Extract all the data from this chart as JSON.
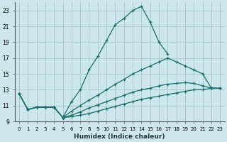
{
  "xlabel": "Humidex (Indice chaleur)",
  "bg_color": "#cce8ec",
  "grid_color": "#aacccc",
  "line_color": "#1a6b6b",
  "xlim": [
    -0.5,
    23.5
  ],
  "ylim": [
    9,
    24
  ],
  "yticks": [
    9,
    11,
    13,
    15,
    17,
    19,
    21,
    23
  ],
  "xticks": [
    0,
    1,
    2,
    3,
    4,
    5,
    6,
    7,
    8,
    9,
    10,
    11,
    12,
    13,
    14,
    15,
    16,
    17,
    18,
    19,
    20,
    21,
    22,
    23
  ],
  "line1_x": [
    0,
    1,
    2,
    3,
    4,
    5,
    6,
    7,
    8,
    9,
    10,
    11,
    12,
    13,
    14,
    15,
    16,
    17
  ],
  "line1_y": [
    12.5,
    10.5,
    10.8,
    10.8,
    10.8,
    9.5,
    11.5,
    13.0,
    15.5,
    17.2,
    19.2,
    21.2,
    22.0,
    23.0,
    23.5,
    21.5,
    19.0,
    17.5
  ],
  "line2_x": [
    0,
    1,
    2,
    3,
    4,
    5,
    6,
    7,
    8,
    9,
    10,
    11,
    12,
    13,
    14,
    15,
    16,
    17,
    18,
    19,
    20,
    21,
    22,
    23
  ],
  "line2_y": [
    12.5,
    10.5,
    10.8,
    10.8,
    10.8,
    9.5,
    10.3,
    11.0,
    11.7,
    12.3,
    13.0,
    13.7,
    14.3,
    15.0,
    15.5,
    16.0,
    16.5,
    17.0,
    16.5,
    16.0,
    15.5,
    15.0,
    13.2,
    13.2
  ],
  "line3_x": [
    0,
    1,
    2,
    3,
    4,
    5,
    6,
    7,
    8,
    9,
    10,
    11,
    12,
    13,
    14,
    15,
    16,
    17,
    18,
    19,
    20,
    21,
    22,
    23
  ],
  "line3_y": [
    12.5,
    10.5,
    10.8,
    10.8,
    10.8,
    9.5,
    9.8,
    10.2,
    10.7,
    11.1,
    11.5,
    11.9,
    12.3,
    12.7,
    13.0,
    13.2,
    13.5,
    13.7,
    13.8,
    13.9,
    13.8,
    13.5,
    13.2,
    13.2
  ],
  "line4_x": [
    0,
    1,
    2,
    3,
    4,
    5,
    6,
    7,
    8,
    9,
    10,
    11,
    12,
    13,
    14,
    15,
    16,
    17,
    18,
    19,
    20,
    21,
    22,
    23
  ],
  "line4_y": [
    12.5,
    10.5,
    10.8,
    10.8,
    10.8,
    9.5,
    9.6,
    9.8,
    10.0,
    10.3,
    10.6,
    10.9,
    11.2,
    11.5,
    11.8,
    12.0,
    12.2,
    12.4,
    12.6,
    12.8,
    13.0,
    13.0,
    13.2,
    13.2
  ]
}
